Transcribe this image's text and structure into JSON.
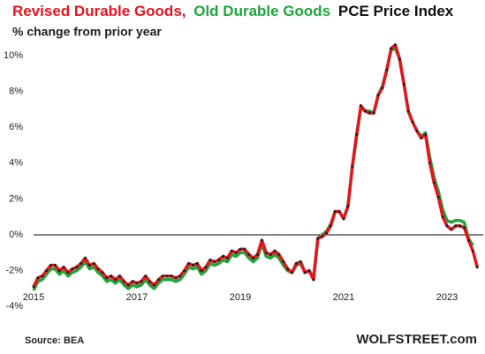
{
  "chart_data": {
    "type": "line",
    "title": "PCE Price Index",
    "subtitle": "% change from prior year",
    "source": "Source: BEA",
    "brand": "WOLFSTREET.com",
    "x": [
      2015,
      2015.083,
      2015.167,
      2015.25,
      2015.333,
      2015.417,
      2015.5,
      2015.583,
      2015.667,
      2015.75,
      2015.833,
      2015.917,
      2016,
      2016.083,
      2016.167,
      2016.25,
      2016.333,
      2016.417,
      2016.5,
      2016.583,
      2016.667,
      2016.75,
      2016.833,
      2016.917,
      2017,
      2017.083,
      2017.167,
      2017.25,
      2017.333,
      2017.417,
      2017.5,
      2017.583,
      2017.667,
      2017.75,
      2017.833,
      2017.917,
      2018,
      2018.083,
      2018.167,
      2018.25,
      2018.333,
      2018.417,
      2018.5,
      2018.583,
      2018.667,
      2018.75,
      2018.833,
      2018.917,
      2019,
      2019.083,
      2019.167,
      2019.25,
      2019.333,
      2019.417,
      2019.5,
      2019.583,
      2019.667,
      2019.75,
      2019.833,
      2019.917,
      2020,
      2020.083,
      2020.167,
      2020.25,
      2020.333,
      2020.417,
      2020.5,
      2020.583,
      2020.667,
      2020.75,
      2020.833,
      2020.917,
      2021,
      2021.083,
      2021.167,
      2021.25,
      2021.333,
      2021.417,
      2021.5,
      2021.583,
      2021.667,
      2021.75,
      2021.833,
      2021.917,
      2022,
      2022.083,
      2022.167,
      2022.25,
      2022.333,
      2022.417,
      2022.5,
      2022.583,
      2022.667,
      2022.75,
      2022.833,
      2022.917,
      2023,
      2023.083,
      2023.167,
      2023.25,
      2023.333,
      2023.417,
      2023.5,
      2023.583
    ],
    "series": [
      {
        "name": "Old Durable Goods",
        "color": "#1fa53c",
        "values": [
          -3.1,
          -2.6,
          -2.5,
          -2.2,
          -1.9,
          -1.9,
          -2.2,
          -2.0,
          -2.3,
          -2.1,
          -2.0,
          -1.8,
          -1.5,
          -1.9,
          -1.8,
          -2.1,
          -2.3,
          -2.6,
          -2.5,
          -2.7,
          -2.5,
          -2.8,
          -3.0,
          -2.8,
          -2.9,
          -2.8,
          -2.5,
          -2.8,
          -3.0,
          -2.7,
          -2.5,
          -2.5,
          -2.5,
          -2.6,
          -2.5,
          -2.2,
          -1.8,
          -1.9,
          -1.8,
          -2.2,
          -2.0,
          -1.6,
          -1.7,
          -1.6,
          -1.4,
          -1.5,
          -1.1,
          -1.2,
          -1.0,
          -1.0,
          -1.3,
          -1.5,
          -1.3,
          -0.5,
          -1.2,
          -1.3,
          -1.1,
          -1.3,
          -1.7,
          -2.0,
          -2.1,
          -1.7,
          -1.6,
          -2.1,
          -2.0,
          -2.4,
          -0.2,
          0.0,
          0.2,
          0.6,
          1.3,
          1.3,
          0.9,
          1.6,
          3.8,
          5.5,
          7.1,
          6.9,
          6.9,
          6.8,
          7.8,
          8.3,
          9.2,
          10.3,
          10.4,
          9.8,
          8.4,
          6.9,
          6.3,
          5.8,
          5.5,
          5.7,
          4.3,
          3.2,
          2.4,
          1.4,
          0.8,
          0.7,
          0.8,
          0.8,
          0.7,
          -0.2,
          -0.6,
          null
        ]
      },
      {
        "name": "Revised Durable Goods,",
        "color": "#e8141c",
        "dots": "#222222",
        "values": [
          -2.9,
          -2.4,
          -2.3,
          -2.0,
          -1.7,
          -1.7,
          -2.0,
          -1.8,
          -2.1,
          -1.9,
          -1.8,
          -1.6,
          -1.3,
          -1.7,
          -1.6,
          -1.9,
          -2.1,
          -2.4,
          -2.3,
          -2.5,
          -2.3,
          -2.6,
          -2.8,
          -2.6,
          -2.7,
          -2.6,
          -2.3,
          -2.6,
          -2.8,
          -2.5,
          -2.3,
          -2.3,
          -2.3,
          -2.4,
          -2.3,
          -2.0,
          -1.6,
          -1.7,
          -1.6,
          -2.0,
          -1.8,
          -1.4,
          -1.5,
          -1.4,
          -1.2,
          -1.3,
          -0.9,
          -1.0,
          -0.8,
          -0.8,
          -1.1,
          -1.3,
          -1.1,
          -0.3,
          -1.0,
          -1.1,
          -0.9,
          -1.1,
          -1.5,
          -1.9,
          -2.1,
          -1.6,
          -1.5,
          -2.1,
          -2.0,
          -2.5,
          -0.2,
          -0.1,
          0.1,
          0.5,
          1.3,
          1.3,
          0.9,
          1.6,
          3.8,
          5.6,
          7.2,
          6.9,
          6.8,
          6.8,
          7.8,
          8.2,
          9.2,
          10.4,
          10.6,
          9.8,
          8.4,
          6.9,
          6.3,
          5.8,
          5.4,
          5.6,
          4.0,
          2.9,
          2.1,
          1.0,
          0.5,
          0.3,
          0.5,
          0.5,
          0.4,
          -0.3,
          -0.9,
          -1.8
        ]
      }
    ],
    "xlim": [
      2015,
      2023.7
    ],
    "xticks": [
      2015,
      2017,
      2019,
      2021,
      2023
    ],
    "ylim": [
      -4.2,
      11
    ],
    "yticks": [
      {
        "value": -4,
        "label": "-4%"
      },
      {
        "value": -2,
        "label": "-2%"
      },
      {
        "value": 0,
        "label": "0%"
      },
      {
        "value": 2,
        "label": "2%"
      },
      {
        "value": 4,
        "label": "4%"
      },
      {
        "value": 6,
        "label": "6%"
      },
      {
        "value": 8,
        "label": "8%"
      },
      {
        "value": 10,
        "label": "10%"
      }
    ],
    "baseline": 0,
    "grid": false
  }
}
